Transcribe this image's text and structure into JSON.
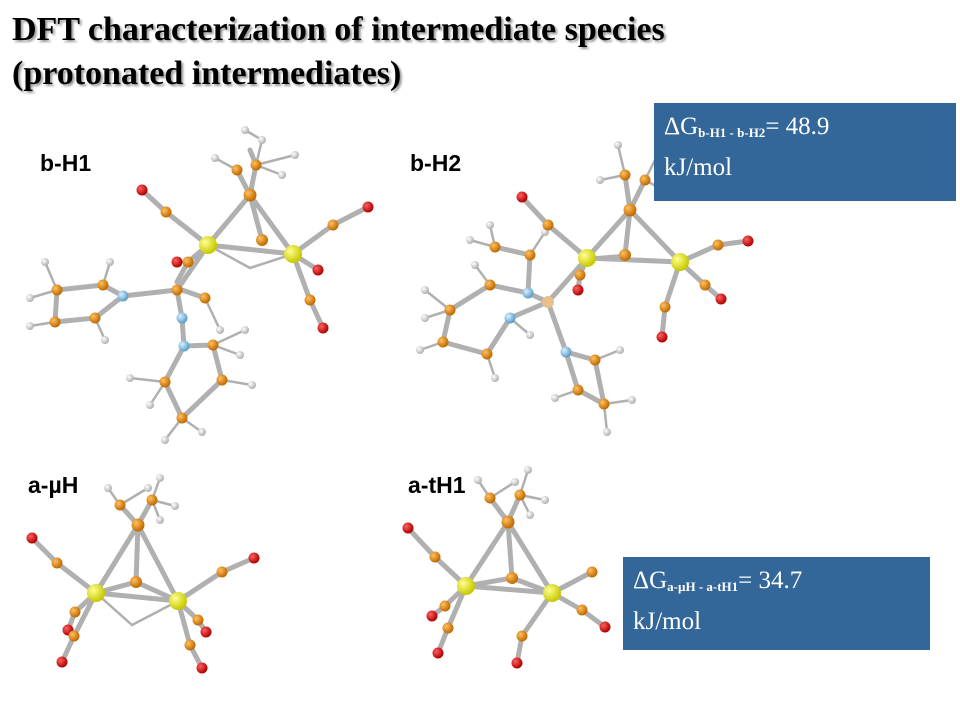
{
  "slide": {
    "title_line1": "DFT characterization of intermediate species",
    "title_line2": "(protonated intermediates)"
  },
  "molecules": [
    {
      "id": "b-H1",
      "label": "b-H1"
    },
    {
      "id": "b-H2",
      "label": "b-H2"
    },
    {
      "id": "a-muH",
      "label": "a-µH"
    },
    {
      "id": "a-tH1",
      "label": "a-tH1"
    }
  ],
  "energies": [
    {
      "delta_symbol": "ΔG",
      "subscript": "b-H1 - b-H2",
      "value_text": "= 48.9",
      "unit": "kJ/mol"
    },
    {
      "delta_symbol": "ΔG",
      "subscript": "a-µH - a-tH1",
      "value_text": "= 34.7",
      "unit": "kJ/mol"
    }
  ],
  "colors": {
    "box_fill": "#336699",
    "iron_atom": "#e0e020",
    "carbon_atom": "#e08a10",
    "oxygen_atom": "#dd1010",
    "hydrogen_atom": "#e8e8e8",
    "nitrogen_atom": "#8ec8e8",
    "bond": "#b5b5b5"
  }
}
